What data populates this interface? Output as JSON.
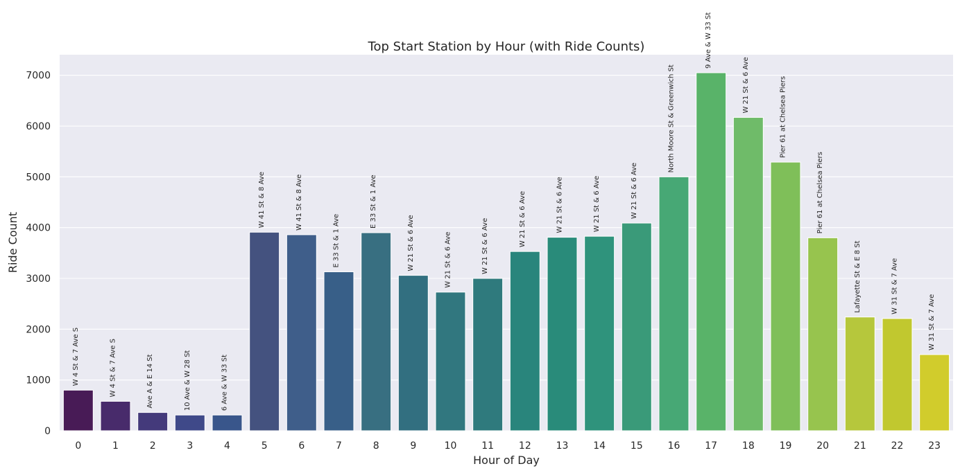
{
  "chart_data": {
    "type": "bar",
    "title": "Top Start Station by Hour (with Ride Counts)",
    "xlabel": "Hour of Day",
    "ylabel": "Ride Count",
    "ylim": [
      0,
      7400
    ],
    "yticks": [
      0,
      1000,
      2000,
      3000,
      4000,
      5000,
      6000,
      7000
    ],
    "grid": true,
    "categories": [
      "0",
      "1",
      "2",
      "3",
      "4",
      "5",
      "6",
      "7",
      "8",
      "9",
      "10",
      "11",
      "12",
      "13",
      "14",
      "15",
      "16",
      "17",
      "18",
      "19",
      "20",
      "21",
      "22",
      "23"
    ],
    "values": [
      800,
      580,
      360,
      310,
      310,
      3910,
      3860,
      3130,
      3900,
      3060,
      2730,
      3000,
      3530,
      3810,
      3830,
      4090,
      5000,
      7050,
      6170,
      5290,
      3800,
      2240,
      2210,
      1500
    ],
    "stations": [
      "W 4 St & 7 Ave S",
      "W 4 St & 7 Ave S",
      "Ave A & E 14 St",
      "10 Ave & W 28 St",
      "6 Ave & W 33 St",
      "W 41 St & 8 Ave",
      "W 41 St & 8 Ave",
      "E 33 St & 1 Ave",
      "E 33 St & 1 Ave",
      "W 21 St & 6 Ave",
      "W 21 St & 6 Ave",
      "W 21 St & 6 Ave",
      "W 21 St & 6 Ave",
      "W 21 St & 6 Ave",
      "W 21 St & 6 Ave",
      "W 21 St & 6 Ave",
      "North Moore St & Greenwich St",
      "9 Ave & W 33 St",
      "W 21 St & 6 Ave",
      "Pier 61 at Chelsea Piers",
      "Pier 61 at Chelsea Piers",
      "Lafayette St & E 8 St",
      "W 31 St & 7 Ave",
      "W 31 St & 7 Ave"
    ],
    "colors": [
      "#481b56",
      "#482b6b",
      "#443a7b",
      "#3f4989",
      "#39568b",
      "#44527f",
      "#3f5e8a",
      "#385f88",
      "#386f81",
      "#326f80",
      "#31777f",
      "#2f7a7d",
      "#29857c",
      "#298b7a",
      "#2f937c",
      "#3a9a79",
      "#47a875",
      "#59b369",
      "#6fbb69",
      "#7fbf59",
      "#97c44e",
      "#b6c73c",
      "#c1c82f",
      "#d1cc2c"
    ]
  }
}
